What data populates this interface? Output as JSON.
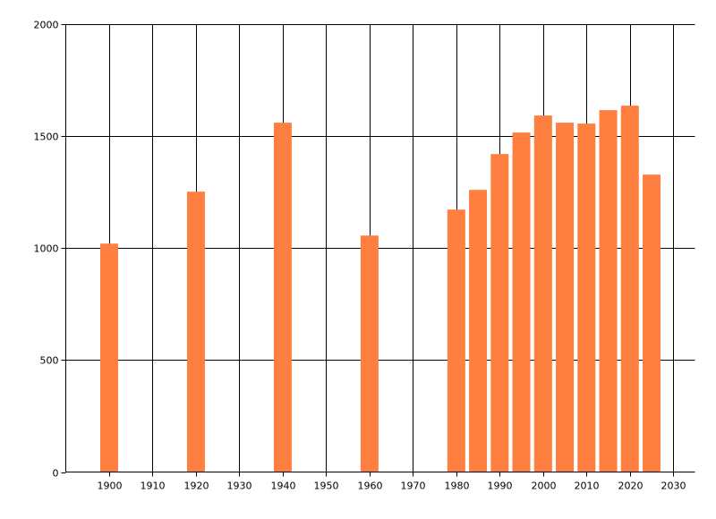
{
  "chart_data": {
    "type": "bar",
    "title": "",
    "xlabel": "",
    "ylabel": "",
    "xlim": [
      1890,
      2035
    ],
    "ylim": [
      0,
      2000
    ],
    "grid": true,
    "bar_color": "#ff7f40",
    "x_ticks": [
      1900,
      1910,
      1920,
      1930,
      1940,
      1950,
      1960,
      1970,
      1980,
      1990,
      2000,
      2010,
      2020,
      2030
    ],
    "y_ticks": [
      0,
      500,
      1000,
      1500,
      2000
    ],
    "x": [
      1900,
      1920,
      1940,
      1960,
      1980,
      1985,
      1990,
      1995,
      2000,
      2005,
      2010,
      2015,
      2020,
      2025
    ],
    "values": [
      1020,
      1252,
      1560,
      1056,
      1172,
      1260,
      1420,
      1516,
      1592,
      1560,
      1556,
      1616,
      1636,
      1328
    ]
  }
}
